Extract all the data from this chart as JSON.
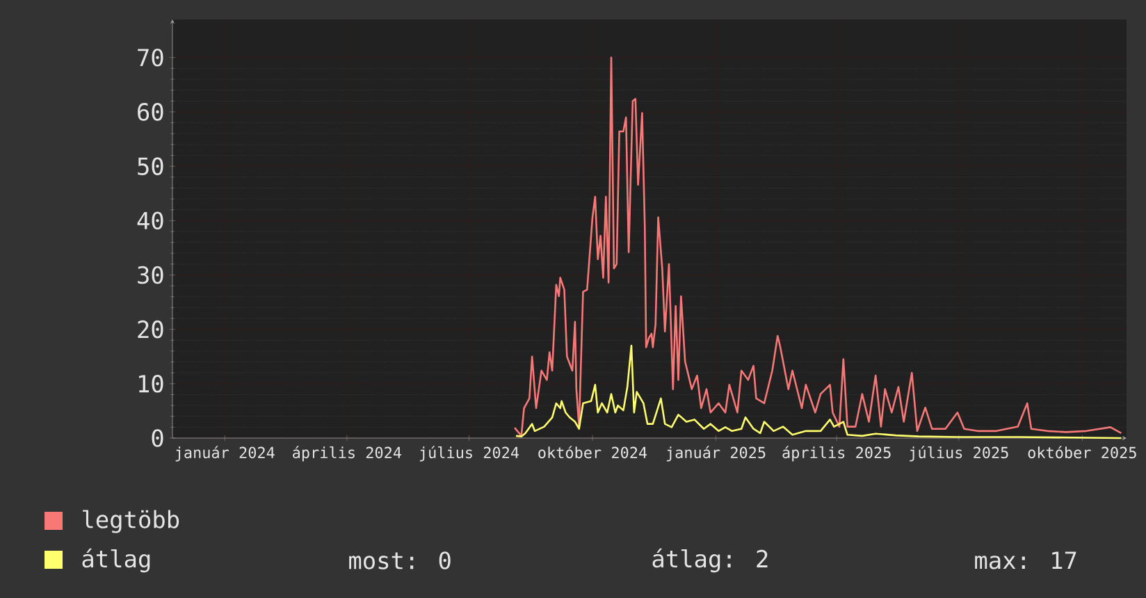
{
  "chart_data": {
    "type": "line",
    "xlim": [
      "2023-11-23",
      "2025-11-03"
    ],
    "xticks": [
      {
        "value": "2024-01-01",
        "label": "január 2024"
      },
      {
        "value": "2024-04-01",
        "label": "április 2024"
      },
      {
        "value": "2024-07-01",
        "label": "július 2024"
      },
      {
        "value": "2024-10-01",
        "label": "október 2024"
      },
      {
        "value": "2025-01-01",
        "label": "január 2025"
      },
      {
        "value": "2025-04-01",
        "label": "április 2025"
      },
      {
        "value": "2025-07-01",
        "label": "július 2025"
      },
      {
        "value": "2025-10-01",
        "label": "október 2025"
      }
    ],
    "ylim": [
      0,
      77
    ],
    "yticks": [
      0,
      10,
      20,
      30,
      40,
      50,
      60,
      70
    ],
    "grid": true,
    "legend": "bottom",
    "annotations": [
      "most: 0",
      "átlag: 2",
      "max: 17"
    ],
    "series": [
      {
        "name": "legtöbb",
        "color": "#f87878",
        "x": [
          "2024-08-04",
          "2024-08-09",
          "2024-08-11",
          "2024-08-15",
          "2024-08-17",
          "2024-08-20",
          "2024-08-24",
          "2024-08-28",
          "2024-08-30",
          "2024-09-01",
          "2024-09-04",
          "2024-09-06",
          "2024-09-07",
          "2024-09-10",
          "2024-09-12",
          "2024-09-16",
          "2024-09-18",
          "2024-09-19",
          "2024-09-21",
          "2024-09-24",
          "2024-09-27",
          "2024-10-01",
          "2024-10-03",
          "2024-10-05",
          "2024-10-07",
          "2024-10-09",
          "2024-10-11",
          "2024-10-13",
          "2024-10-15",
          "2024-10-17",
          "2024-10-19",
          "2024-10-21",
          "2024-10-24",
          "2024-10-26",
          "2024-10-28",
          "2024-10-31",
          "2024-11-02",
          "2024-11-04",
          "2024-11-07",
          "2024-11-09",
          "2024-11-10",
          "2024-11-12",
          "2024-11-14",
          "2024-11-15",
          "2024-11-17",
          "2024-11-19",
          "2024-11-22",
          "2024-11-24",
          "2024-11-27",
          "2024-11-30",
          "2024-12-02",
          "2024-12-04",
          "2024-12-06",
          "2024-12-09",
          "2024-12-14",
          "2024-12-18",
          "2024-12-21",
          "2024-12-25",
          "2024-12-28",
          "2025-01-03",
          "2025-01-08",
          "2025-01-11",
          "2025-01-17",
          "2025-01-20",
          "2025-01-25",
          "2025-01-29",
          "2025-01-31",
          "2025-02-06",
          "2025-02-12",
          "2025-02-16",
          "2025-02-18",
          "2025-02-24",
          "2025-02-27",
          "2025-03-06",
          "2025-03-09",
          "2025-03-16",
          "2025-03-20",
          "2025-03-27",
          "2025-03-29",
          "2025-04-03",
          "2025-04-06",
          "2025-04-09",
          "2025-04-15",
          "2025-04-20",
          "2025-04-25",
          "2025-04-30",
          "2025-05-04",
          "2025-05-07",
          "2025-05-12",
          "2025-05-17",
          "2025-05-21",
          "2025-05-27",
          "2025-05-31",
          "2025-06-06",
          "2025-06-11",
          "2025-06-21",
          "2025-06-30",
          "2025-07-05",
          "2025-07-15",
          "2025-07-29",
          "2025-08-14",
          "2025-08-21",
          "2025-08-24",
          "2025-09-05",
          "2025-09-19",
          "2025-10-04",
          "2025-10-22",
          "2025-10-30"
        ],
        "values": [
          1.9,
          0.4,
          5.5,
          7.3,
          15.0,
          5.5,
          12.4,
          10.7,
          15.8,
          12.4,
          28.2,
          26.1,
          29.5,
          27.3,
          15.0,
          12.4,
          21.4,
          9.0,
          2.1,
          26.9,
          27.3,
          40.6,
          44.4,
          32.9,
          37.2,
          29.5,
          44.4,
          28.6,
          70,
          31.2,
          32.0,
          56.4,
          56.4,
          59.0,
          34.2,
          62.0,
          62.4,
          46.6,
          59.8,
          38.9,
          16.7,
          18.4,
          19.2,
          16.7,
          20.9,
          40.6,
          31.2,
          19.6,
          32.0,
          9.0,
          24.3,
          10.7,
          26.1,
          14.1,
          9.0,
          11.5,
          5.5,
          9.0,
          4.7,
          6.4,
          4.7,
          9.8,
          4.7,
          12.4,
          10.7,
          13.3,
          7.3,
          6.4,
          12.4,
          18.8,
          16.7,
          9.0,
          12.4,
          5.5,
          9.8,
          4.7,
          8.1,
          9.8,
          4.7,
          2.1,
          14.5,
          2.1,
          2.1,
          8.1,
          3.0,
          11.5,
          2.1,
          9.0,
          4.7,
          9.4,
          3.0,
          12.0,
          1.3,
          5.6,
          1.7,
          1.7,
          4.7,
          1.7,
          1.3,
          1.3,
          2.1,
          6.4,
          1.7,
          1.3,
          1.1,
          1.3,
          2.0,
          0.9
        ]
      },
      {
        "name": "átlag",
        "color": "#ffff6e",
        "x": [
          "2024-08-05",
          "2024-08-09",
          "2024-08-12",
          "2024-08-17",
          "2024-08-19",
          "2024-08-26",
          "2024-09-01",
          "2024-09-04",
          "2024-09-07",
          "2024-09-08",
          "2024-09-11",
          "2024-09-14",
          "2024-09-18",
          "2024-09-21",
          "2024-09-24",
          "2024-09-30",
          "2024-10-03",
          "2024-10-05",
          "2024-10-08",
          "2024-10-12",
          "2024-10-15",
          "2024-10-18",
          "2024-10-20",
          "2024-10-24",
          "2024-10-27",
          "2024-10-30",
          "2024-11-01",
          "2024-11-03",
          "2024-11-08",
          "2024-11-11",
          "2024-11-15",
          "2024-11-21",
          "2024-11-24",
          "2024-11-29",
          "2024-12-04",
          "2024-12-10",
          "2024-12-16",
          "2024-12-23",
          "2024-12-28",
          "2025-01-03",
          "2025-01-08",
          "2025-01-13",
          "2025-01-20",
          "2025-01-23",
          "2025-01-29",
          "2025-02-03",
          "2025-02-06",
          "2025-02-13",
          "2025-02-20",
          "2025-02-27",
          "2025-03-09",
          "2025-03-20",
          "2025-03-27",
          "2025-03-30",
          "2025-04-06",
          "2025-04-09",
          "2025-04-20",
          "2025-04-30",
          "2025-05-15",
          "2025-06-01",
          "2025-07-01",
          "2025-08-15",
          "2025-10-30"
        ],
        "values": [
          0.4,
          0.3,
          0.9,
          2.6,
          1.3,
          2.1,
          3.8,
          6.4,
          5.5,
          6.8,
          4.7,
          3.8,
          3.0,
          1.7,
          6.4,
          6.8,
          9.8,
          4.7,
          6.4,
          4.7,
          8.1,
          4.7,
          6.0,
          5.1,
          9.4,
          17,
          4.7,
          8.5,
          6.4,
          2.6,
          2.6,
          7.3,
          2.6,
          2.0,
          4.3,
          3.0,
          3.4,
          1.7,
          2.6,
          1.3,
          2.0,
          1.3,
          1.7,
          3.8,
          1.7,
          0.9,
          3.0,
          1.3,
          2.1,
          0.6,
          1.3,
          1.3,
          3.4,
          2.1,
          3.0,
          0.6,
          0.4,
          0.8,
          0.5,
          0.3,
          0.2,
          0.2,
          0.0
        ]
      }
    ]
  }
}
